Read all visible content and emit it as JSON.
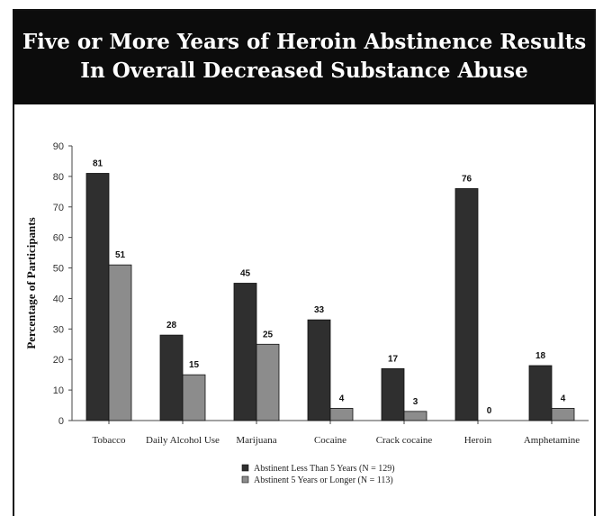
{
  "header": {
    "title_line1": "Five or More Years of Heroin Abstinence Results",
    "title_line2": "In Overall Decreased Substance Abuse"
  },
  "colors": {
    "title_background": "#0c0c0c",
    "series_dark": "#2f2f2f",
    "series_light": "#8c8c8c"
  },
  "chart_data": {
    "type": "bar",
    "title": "Five or More Years of Heroin Abstinence Results In Overall Decreased Substance Abuse",
    "xlabel": "",
    "ylabel": "Percentage of Participants",
    "ylim": [
      0,
      90
    ],
    "yticks": [
      0,
      10,
      20,
      30,
      40,
      50,
      60,
      70,
      80,
      90
    ],
    "grid": false,
    "legend_position": "bottom-center",
    "categories": [
      "Tobacco",
      "Daily Alcohol Use",
      "Marijuana",
      "Cocaine",
      "Crack cocaine",
      "Heroin",
      "Amphetamine"
    ],
    "series": [
      {
        "name": "Abstinent Less Than 5 Years (N = 129)",
        "values": [
          81,
          28,
          45,
          33,
          17,
          76,
          18
        ]
      },
      {
        "name": "Abstinent 5 Years or Longer (N = 113)",
        "values": [
          51,
          15,
          25,
          4,
          3,
          0,
          4
        ]
      }
    ]
  }
}
